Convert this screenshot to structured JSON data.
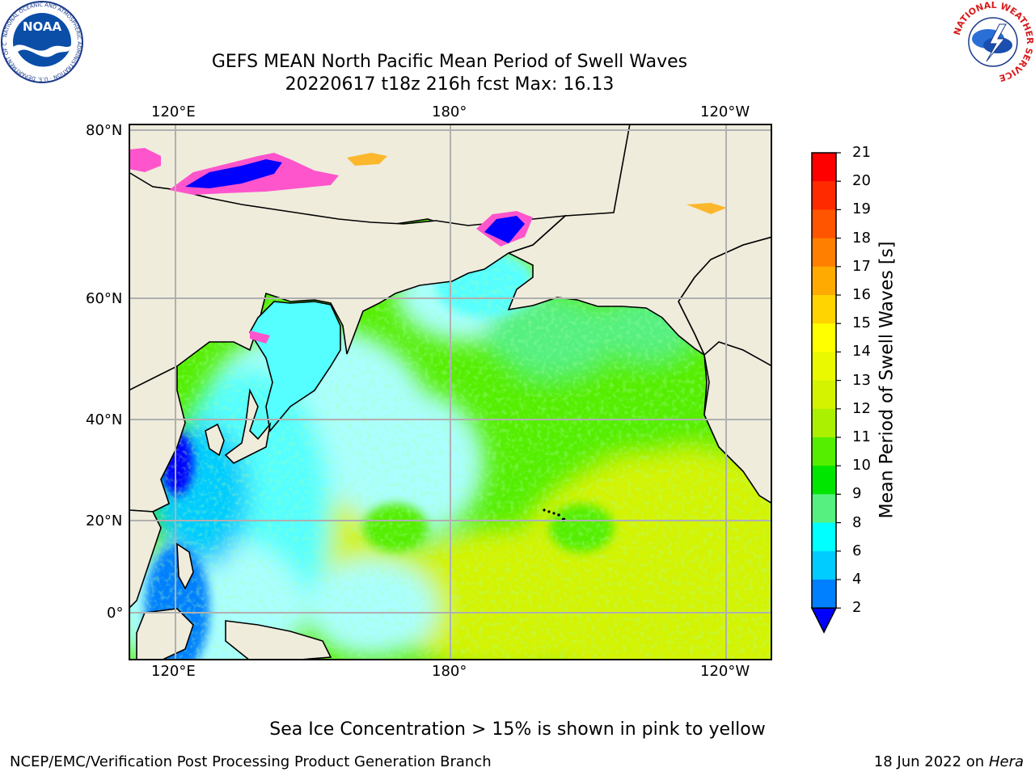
{
  "title_line1": "GEFS MEAN North Pacific Mean Period of Swell Waves",
  "title_line2": "20220617 t18z 216h fcst   Max: 16.13",
  "longitude_labels": [
    "120°E",
    "180°",
    "120°W"
  ],
  "latitude_labels": [
    "80°N",
    "60°N",
    "40°N",
    "20°N",
    "0°"
  ],
  "colorbar": {
    "label": "Mean Period of Swell Waves [s]",
    "ticks": [
      "21",
      "20",
      "19",
      "18",
      "17",
      "16",
      "15",
      "14",
      "13",
      "12",
      "11",
      "10",
      "9",
      "8",
      "6",
      "4",
      "2"
    ],
    "colors": [
      "#ff0000",
      "#ff2a00",
      "#ff5500",
      "#ff8000",
      "#ffaa00",
      "#ffd400",
      "#ffff00",
      "#eaf900",
      "#d4f300",
      "#aaf000",
      "#55ee00",
      "#00e600",
      "#55f080",
      "#aaffff",
      "#55ffff",
      "#00ffff",
      "#00ccff",
      "#0080ff",
      "#0000ff"
    ]
  },
  "map_colors": {
    "land": "#efecdc",
    "grid": "#b0b0b0",
    "coast": "#000000"
  },
  "note": "Sea Ice Concentration > 15% is shown in pink to yellow",
  "footer_left": "NCEP/EMC/Verification Post Processing Product Generation Branch",
  "footer_date": "18 Jun 2022 on",
  "footer_host": "Hera",
  "logos": {
    "noaa_text": "NOAA",
    "noaa_ring": "NATIONAL OCEANIC AND ATMOSPHERIC ADMINISTRATION · U.S. DEPARTMENT OF COMMERCE",
    "nws_ring": "NATIONAL WEATHER SERVICE"
  }
}
